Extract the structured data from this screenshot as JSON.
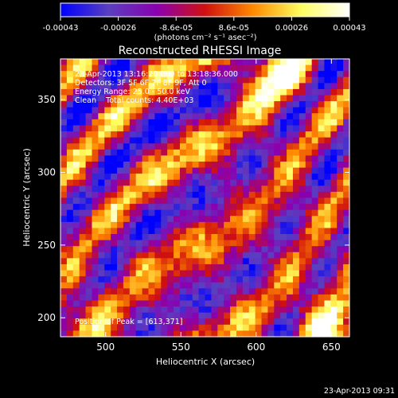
{
  "chart_data": {
    "type": "heatmap",
    "title": "Reconstructed RHESSI Image",
    "xlabel": "Heliocentric X (arcsec)",
    "ylabel": "Heliocentric Y (arcsec)",
    "xlim": [
      470,
      662
    ],
    "ylim": [
      187,
      378
    ],
    "x_ticks": [
      "500",
      "550",
      "600",
      "650"
    ],
    "y_ticks": [
      "200",
      "250",
      "300",
      "350"
    ],
    "colorbar": {
      "ticks": [
        "-0.00043",
        "-0.00026",
        "-8.6e-05",
        "8.6e-05",
        "0.00026",
        "0.00043"
      ],
      "range": [
        -0.00043,
        0.00043
      ],
      "unit_text": "(photons cm⁻² s⁻¹ asec⁻²)",
      "colors": [
        "#0000ff",
        "#5a3fc0",
        "#8a00b0",
        "#d01010",
        "#ff8a00",
        "#ffff60",
        "#ffffff"
      ]
    },
    "annotations": {
      "line1": "23-Apr-2013 13:16:20.000 to 13:18:36.000",
      "line2": "Detectors: 3F 5F 6F 7F 8F 9F, Att 0",
      "line3": "Energy Range: 25.0 - 50.0 keV",
      "line4": "Clean    Total counts: 4.40E+03",
      "peak": "Position of Peak = [613,371]"
    },
    "grid": false
  },
  "footer": {
    "timestamp": "23-Apr-2013 09:31"
  }
}
